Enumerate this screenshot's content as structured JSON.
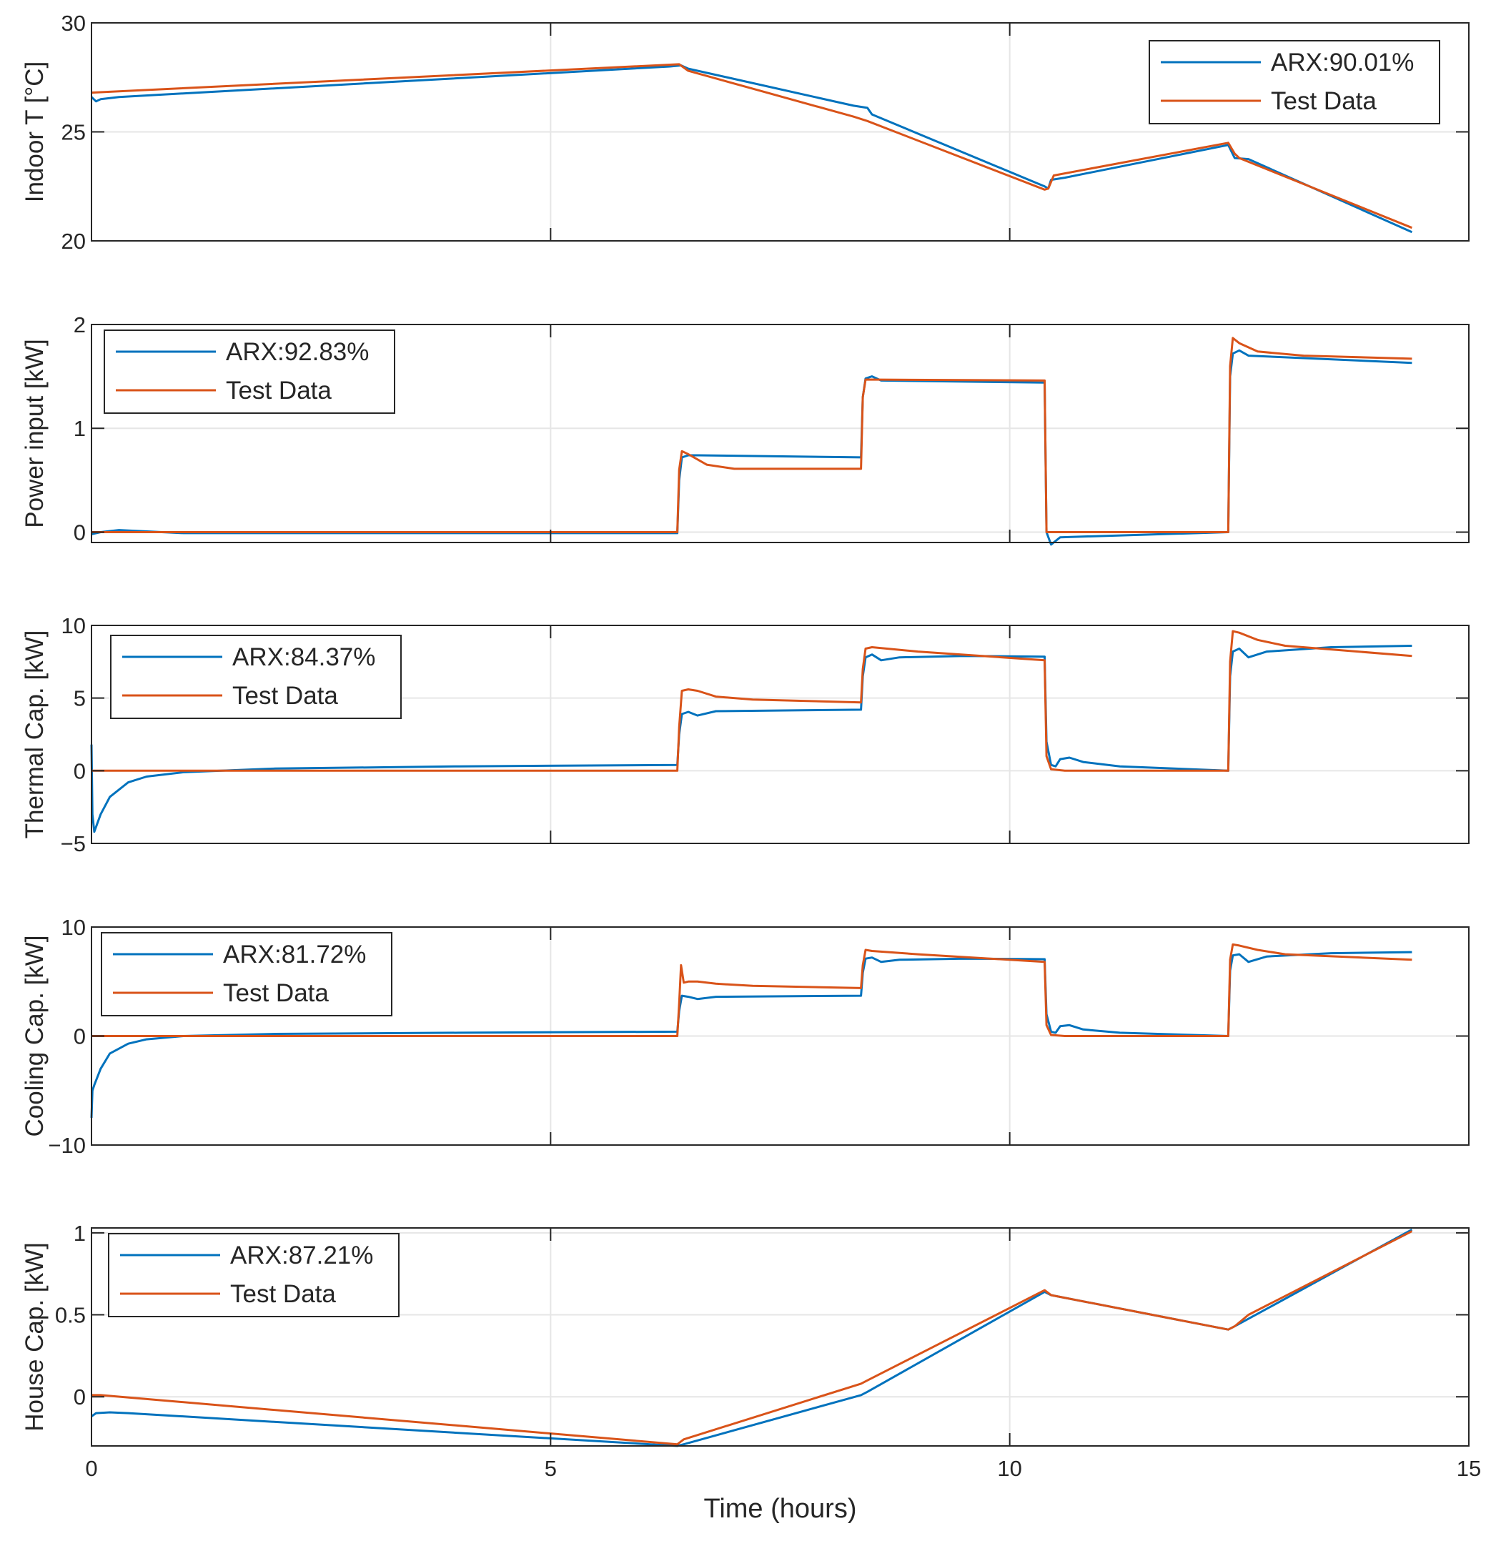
{
  "chart_data": [
    {
      "type": "line",
      "ylabel": "Indoor T [°C]",
      "xlim": [
        0,
        15
      ],
      "ylim": [
        20,
        30
      ],
      "yticks": [
        20,
        25,
        30
      ],
      "grid": true,
      "legend_position": "top-right",
      "series": [
        {
          "name": "ARX:90.01%",
          "color": "#0072BD",
          "x": [
            0,
            0.05,
            0.1,
            0.3,
            6.3,
            6.42,
            6.5,
            8.3,
            8.45,
            8.5,
            10.38,
            10.42,
            10.45,
            10.6,
            12.38,
            12.45,
            12.6,
            14.38
          ],
          "y": [
            26.6,
            26.4,
            26.5,
            26.6,
            28.0,
            28.05,
            27.9,
            26.2,
            26.1,
            25.8,
            22.5,
            22.4,
            22.8,
            22.9,
            24.4,
            23.8,
            23.75,
            20.4
          ]
        },
        {
          "name": "Test Data",
          "color": "#D95319",
          "x": [
            0,
            6.4,
            6.5,
            8.3,
            8.45,
            10.38,
            10.42,
            10.48,
            12.38,
            12.45,
            12.5,
            14.38
          ],
          "y": [
            26.8,
            28.1,
            27.8,
            25.7,
            25.5,
            22.35,
            22.4,
            23.0,
            24.5,
            24.0,
            23.8,
            20.6
          ]
        }
      ]
    },
    {
      "type": "line",
      "ylabel": "Power input [kW]",
      "xlim": [
        0,
        15
      ],
      "ylim": [
        -0.1,
        2
      ],
      "yticks": [
        0,
        1,
        2
      ],
      "grid": true,
      "legend_position": "top-left",
      "series": [
        {
          "name": "ARX:92.83%",
          "color": "#0072BD",
          "x": [
            0,
            0.1,
            0.3,
            1,
            6.38,
            6.4,
            6.43,
            6.5,
            6.6,
            8.38,
            8.4,
            8.43,
            8.5,
            8.6,
            10.38,
            10.4,
            10.45,
            10.55,
            12.38,
            12.4,
            12.43,
            12.5,
            12.6,
            14.38
          ],
          "y": [
            -0.02,
            0.0,
            0.02,
            -0.01,
            -0.01,
            0.5,
            0.72,
            0.74,
            0.74,
            0.72,
            1.3,
            1.48,
            1.5,
            1.46,
            1.44,
            0.0,
            -0.12,
            -0.05,
            0.0,
            1.5,
            1.72,
            1.75,
            1.7,
            1.63
          ]
        },
        {
          "name": "Test Data",
          "color": "#D95319",
          "x": [
            0,
            6.38,
            6.4,
            6.43,
            6.5,
            6.7,
            7,
            8.38,
            8.4,
            8.43,
            10.38,
            10.4,
            10.45,
            12.38,
            12.4,
            12.43,
            12.5,
            12.7,
            13.2,
            14.38
          ],
          "y": [
            0.0,
            0.0,
            0.6,
            0.78,
            0.75,
            0.65,
            0.61,
            0.61,
            1.3,
            1.47,
            1.46,
            0.0,
            0.0,
            0.0,
            1.6,
            1.87,
            1.82,
            1.74,
            1.7,
            1.67
          ]
        }
      ]
    },
    {
      "type": "line",
      "ylabel": "Thermal Cap. [kW]",
      "xlim": [
        0,
        15
      ],
      "ylim": [
        -5,
        10
      ],
      "yticks": [
        -5,
        0,
        5,
        10
      ],
      "grid": true,
      "legend_position": "top-left",
      "series": [
        {
          "name": "ARX:84.37%",
          "color": "#0072BD",
          "x": [
            0,
            0.01,
            0.03,
            0.1,
            0.2,
            0.4,
            0.6,
            1.0,
            2,
            4,
            6.38,
            6.4,
            6.43,
            6.5,
            6.6,
            6.8,
            8.38,
            8.4,
            8.43,
            8.5,
            8.6,
            8.8,
            9.5,
            10.38,
            10.4,
            10.45,
            10.5,
            10.55,
            10.65,
            10.8,
            11.2,
            12.38,
            12.4,
            12.43,
            12.5,
            12.6,
            12.8,
            13.5,
            14.38
          ],
          "y": [
            1.8,
            -3.0,
            -4.2,
            -3.0,
            -1.8,
            -0.8,
            -0.4,
            -0.1,
            0.15,
            0.3,
            0.4,
            2.5,
            3.9,
            4.05,
            3.8,
            4.1,
            4.2,
            6.5,
            7.8,
            8.0,
            7.6,
            7.8,
            7.9,
            7.85,
            2.0,
            0.4,
            0.3,
            0.8,
            0.9,
            0.6,
            0.3,
            0.0,
            6.5,
            8.2,
            8.4,
            7.8,
            8.2,
            8.5,
            8.6
          ]
        },
        {
          "name": "Test Data",
          "color": "#D95319",
          "x": [
            0,
            6.38,
            6.4,
            6.43,
            6.5,
            6.6,
            6.8,
            7.2,
            8.38,
            8.4,
            8.43,
            8.5,
            9.0,
            10.38,
            10.4,
            10.45,
            10.6,
            12.38,
            12.4,
            12.43,
            12.5,
            12.7,
            13.0,
            14.38
          ],
          "y": [
            0.0,
            0.0,
            3.0,
            5.5,
            5.6,
            5.5,
            5.1,
            4.9,
            4.7,
            7.0,
            8.4,
            8.5,
            8.2,
            7.6,
            1.0,
            0.1,
            0.0,
            0.0,
            7.5,
            9.6,
            9.5,
            9.0,
            8.6,
            7.9
          ]
        }
      ]
    },
    {
      "type": "line",
      "ylabel": "Cooling Cap. [kW]",
      "xlim": [
        0,
        15
      ],
      "ylim": [
        -10,
        10
      ],
      "yticks": [
        -10,
        0,
        10
      ],
      "grid": true,
      "legend_position": "top-left",
      "series": [
        {
          "name": "ARX:81.72%",
          "color": "#0072BD",
          "x": [
            0,
            0.01,
            0.03,
            0.1,
            0.2,
            0.4,
            0.6,
            1.0,
            2,
            4,
            6.38,
            6.4,
            6.43,
            6.5,
            6.6,
            6.8,
            8.38,
            8.4,
            8.43,
            8.5,
            8.6,
            8.8,
            9.5,
            10.38,
            10.4,
            10.45,
            10.5,
            10.55,
            10.65,
            10.8,
            11.2,
            12.38,
            12.4,
            12.43,
            12.5,
            12.6,
            12.8,
            13.5,
            14.38
          ],
          "y": [
            -7.5,
            -5.0,
            -4.5,
            -3.0,
            -1.6,
            -0.7,
            -0.3,
            0.0,
            0.2,
            0.3,
            0.4,
            2.3,
            3.7,
            3.6,
            3.4,
            3.6,
            3.7,
            5.8,
            7.1,
            7.2,
            6.8,
            7.0,
            7.1,
            7.05,
            2.0,
            0.4,
            0.3,
            0.9,
            1.0,
            0.6,
            0.3,
            0.0,
            6.0,
            7.4,
            7.5,
            6.8,
            7.3,
            7.6,
            7.7
          ]
        },
        {
          "name": "Test Data",
          "color": "#D95319",
          "x": [
            0,
            6.38,
            6.4,
            6.42,
            6.45,
            6.5,
            6.6,
            6.8,
            7.2,
            8.38,
            8.4,
            8.43,
            8.5,
            9.0,
            10.38,
            10.4,
            10.45,
            10.6,
            12.38,
            12.4,
            12.43,
            12.5,
            12.7,
            13.0,
            14.38
          ],
          "y": [
            0.0,
            0.0,
            3.0,
            6.5,
            4.9,
            5.0,
            5.0,
            4.8,
            4.6,
            4.4,
            6.5,
            7.9,
            7.8,
            7.5,
            6.8,
            1.0,
            0.1,
            0.0,
            0.0,
            7.0,
            8.4,
            8.3,
            7.9,
            7.5,
            7.0
          ]
        }
      ]
    },
    {
      "type": "line",
      "ylabel": "House Cap. [kW]",
      "xlabel": "Time (hours)",
      "xlim": [
        0,
        15
      ],
      "ylim": [
        -0.3,
        1.03
      ],
      "yticks": [
        0,
        0.5,
        1
      ],
      "xticks": [
        0,
        5,
        10,
        15
      ],
      "grid": true,
      "legend_position": "top-left",
      "series": [
        {
          "name": "ARX:87.21%",
          "color": "#0072BD",
          "x": [
            0,
            0.05,
            0.2,
            0.4,
            6.38,
            6.45,
            8.38,
            8.45,
            10.38,
            10.45,
            12.38,
            12.45,
            14.38
          ],
          "y": [
            -0.12,
            -0.1,
            -0.095,
            -0.1,
            -0.3,
            -0.29,
            0.01,
            0.03,
            0.64,
            0.62,
            0.41,
            0.43,
            1.02
          ]
        },
        {
          "name": "Test Data",
          "color": "#D95319",
          "x": [
            0,
            0.1,
            6.38,
            6.45,
            8.38,
            8.45,
            10.38,
            10.45,
            12.38,
            12.45,
            12.6,
            14.38
          ],
          "y": [
            0.01,
            0.01,
            -0.29,
            -0.26,
            0.08,
            0.1,
            0.65,
            0.62,
            0.41,
            0.43,
            0.5,
            1.01
          ]
        }
      ]
    }
  ]
}
